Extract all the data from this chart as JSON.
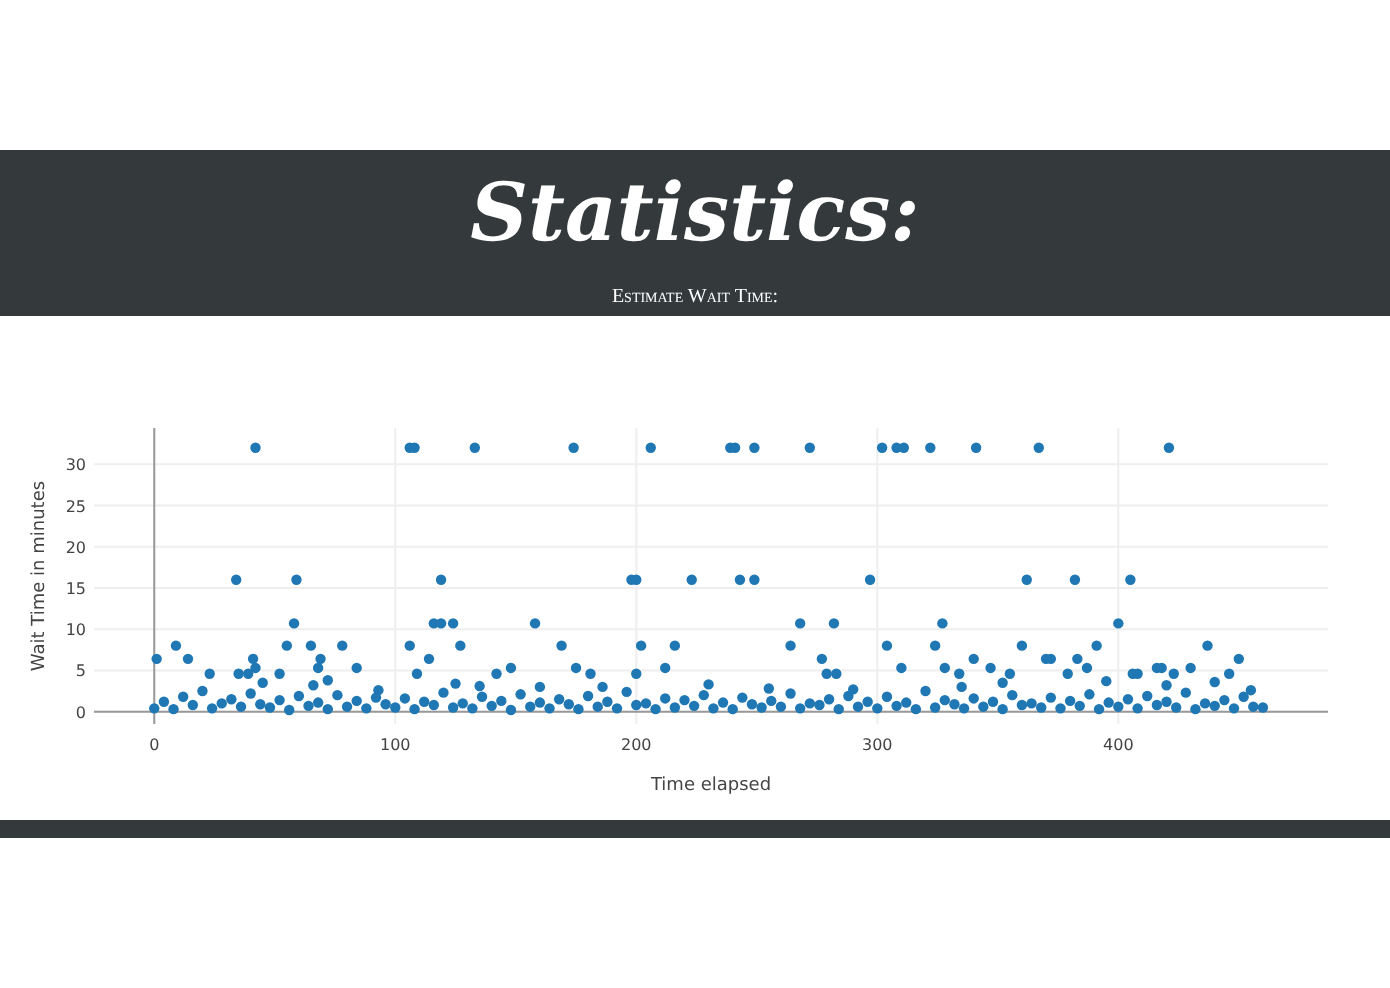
{
  "chart_data": {
    "type": "scatter",
    "title": "Statistics:",
    "subtitle": "Estimate Wait Time:",
    "xlabel": "Time elapsed",
    "ylabel": "Wait Time in minutes",
    "color": "#1f77b4",
    "marker": "circle",
    "grid": true,
    "xlim": [
      -25,
      487
    ],
    "ylim": [
      -1.5,
      34.4
    ],
    "xticks": [
      0,
      100,
      200,
      300,
      400
    ],
    "yticks": [
      0,
      5,
      10,
      15,
      20,
      25,
      30
    ],
    "x": [
      42,
      106,
      108,
      133,
      174,
      206,
      239,
      241,
      249,
      272,
      302,
      308,
      311,
      322,
      341,
      367,
      421,
      34,
      59,
      119,
      198,
      200,
      223,
      243,
      249,
      297,
      362,
      382,
      405,
      58,
      116,
      119,
      124,
      158,
      268,
      282,
      327,
      400,
      9,
      55,
      65,
      78,
      106,
      127,
      169,
      202,
      216,
      264,
      304,
      324,
      360,
      391,
      437,
      1,
      14,
      41,
      69,
      114,
      277,
      340,
      370,
      372,
      383,
      450,
      42,
      68,
      84,
      148,
      175,
      212,
      310,
      328,
      347,
      387,
      416,
      418,
      430,
      23,
      35,
      39,
      52,
      109,
      142,
      181,
      200,
      279,
      283,
      334,
      355,
      379,
      406,
      408,
      423,
      446,
      45,
      66,
      72,
      93,
      125,
      135,
      160,
      186,
      230,
      255,
      290,
      335,
      352,
      395,
      420,
      440,
      455,
      0,
      4,
      8,
      12,
      16,
      20,
      24,
      28,
      32,
      36,
      40,
      44,
      48,
      52,
      56,
      60,
      64,
      68,
      72,
      76,
      80,
      84,
      88,
      92,
      96,
      100,
      104,
      108,
      112,
      116,
      120,
      124,
      128,
      132,
      136,
      140,
      144,
      148,
      152,
      156,
      160,
      164,
      168,
      172,
      176,
      180,
      184,
      188,
      192,
      196,
      200,
      204,
      208,
      212,
      216,
      220,
      224,
      228,
      232,
      236,
      240,
      244,
      248,
      252,
      256,
      260,
      264,
      268,
      272,
      276,
      280,
      284,
      288,
      292,
      296,
      300,
      304,
      308,
      312,
      316,
      320,
      324,
      328,
      332,
      336,
      340,
      344,
      348,
      352,
      356,
      360,
      364,
      368,
      372,
      376,
      380,
      384,
      388,
      392,
      396,
      400,
      404,
      408,
      412,
      416,
      420,
      424,
      428,
      432,
      436,
      440,
      444,
      448,
      452,
      456,
      460
    ],
    "values": [
      32,
      32,
      32,
      32,
      32,
      32,
      32,
      32,
      32,
      32,
      32,
      32,
      32,
      32,
      32,
      32,
      32,
      16,
      16,
      16,
      16,
      16,
      16,
      16,
      16,
      16,
      16,
      16,
      16,
      10.7,
      10.7,
      10.7,
      10.7,
      10.7,
      10.7,
      10.7,
      10.7,
      10.7,
      8,
      8,
      8,
      8,
      8,
      8,
      8,
      8,
      8,
      8,
      8,
      8,
      8,
      8,
      8,
      6.4,
      6.4,
      6.4,
      6.4,
      6.4,
      6.4,
      6.4,
      6.4,
      6.4,
      6.4,
      6.4,
      5.3,
      5.3,
      5.3,
      5.3,
      5.3,
      5.3,
      5.3,
      5.3,
      5.3,
      5.3,
      5.3,
      5.3,
      5.3,
      4.6,
      4.6,
      4.6,
      4.6,
      4.6,
      4.6,
      4.6,
      4.6,
      4.6,
      4.6,
      4.6,
      4.6,
      4.6,
      4.6,
      4.6,
      4.6,
      4.6,
      3.5,
      3.2,
      3.8,
      2.6,
      3.4,
      3.1,
      3,
      3,
      3.3,
      2.8,
      2.7,
      3,
      3.5,
      3.7,
      3.2,
      3.6,
      2.6,
      0.4,
      1.2,
      0.3,
      1.8,
      0.8,
      2.5,
      0.4,
      1,
      1.5,
      0.6,
      2.2,
      0.9,
      0.5,
      1.4,
      0.2,
      1.9,
      0.7,
      1.1,
      0.3,
      2,
      0.6,
      1.3,
      0.4,
      1.7,
      0.9,
      0.5,
      1.6,
      0.3,
      1.2,
      0.8,
      2.3,
      0.5,
      1,
      0.4,
      1.8,
      0.7,
      1.3,
      0.2,
      2.1,
      0.6,
      1.1,
      0.4,
      1.5,
      0.9,
      0.3,
      1.9,
      0.6,
      1.2,
      0.4,
      2.4,
      0.8,
      1,
      0.3,
      1.6,
      0.5,
      1.4,
      0.7,
      2,
      0.4,
      1.1,
      0.3,
      1.7,
      0.9,
      0.5,
      1.3,
      0.6,
      2.2,
      0.4,
      1,
      0.8,
      1.5,
      0.3,
      1.9,
      0.6,
      1.2,
      0.4,
      1.8,
      0.7,
      1.1,
      0.3,
      2.5,
      0.5,
      1.4,
      0.9,
      0.4,
      1.6,
      0.6,
      1.2,
      0.3,
      2,
      0.8,
      1,
      0.5,
      1.7,
      0.4,
      1.3,
      0.7,
      2.1,
      0.3,
      1.1,
      0.6,
      1.5,
      0.4,
      1.9,
      0.8,
      1.2,
      0.5,
      2.3,
      0.3,
      1,
      0.7,
      1.4,
      0.4,
      1.8,
      0.6,
      0.5
    ]
  }
}
